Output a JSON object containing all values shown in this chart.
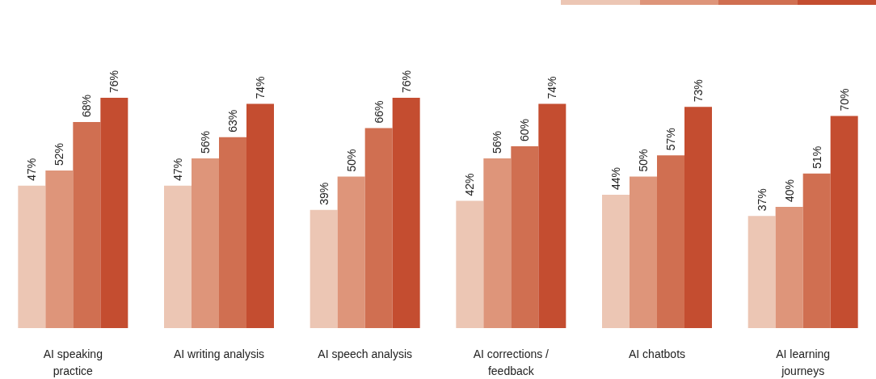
{
  "chart_data": {
    "type": "bar",
    "categories": [
      "AI speaking\npractice",
      "AI writing analysis",
      "AI speech analysis",
      "AI corrections /\nfeedback",
      "AI chatbots",
      "AI learning\njourneys"
    ],
    "series": [
      {
        "color": "#ecc6b4",
        "values": [
          47,
          47,
          39,
          42,
          44,
          37
        ],
        "value_labels": [
          "47%",
          "47%",
          "39%",
          "42%",
          "44%",
          "37%"
        ]
      },
      {
        "color": "#de957a",
        "values": [
          52,
          56,
          50,
          56,
          50,
          40
        ],
        "value_labels": [
          "52%",
          "56%",
          "50%",
          "56%",
          "50%",
          "40%"
        ]
      },
      {
        "color": "#d06f51",
        "values": [
          68,
          63,
          66,
          60,
          57,
          51
        ],
        "value_labels": [
          "68%",
          "63%",
          "66%",
          "60%",
          "57%",
          "51%"
        ]
      },
      {
        "color": "#c44d30",
        "values": [
          76,
          74,
          76,
          74,
          73,
          70
        ],
        "value_labels": [
          "76%",
          "74%",
          "76%",
          "74%",
          "73%",
          "70%"
        ]
      }
    ],
    "grid": false
  }
}
